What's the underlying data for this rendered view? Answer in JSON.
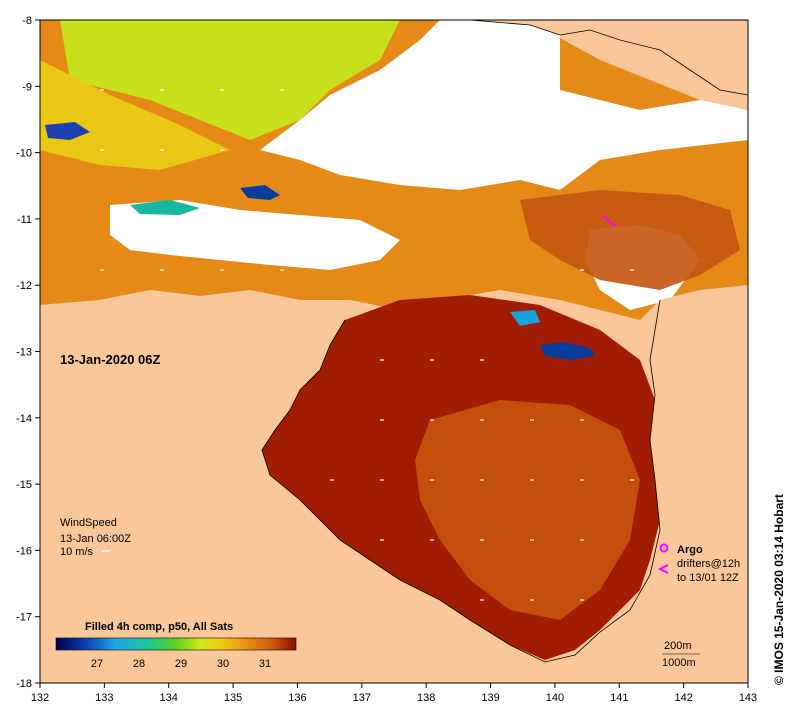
{
  "map": {
    "date_label": "13-Jan-2020 06Z",
    "credit": "© IMOS 15-Jan-2020 03:14 Hobart",
    "lon_ticks": [
      "132",
      "133",
      "134",
      "135",
      "136",
      "137",
      "138",
      "139",
      "140",
      "141",
      "142",
      "143"
    ],
    "lat_ticks": [
      "-8",
      "-9",
      "-10",
      "-11",
      "-12",
      "-13",
      "-14",
      "-15",
      "-16",
      "-17",
      "-18"
    ],
    "colors": {
      "land": "#f9c79a",
      "cloud": "#ffffff",
      "sst_hot": "#a31a00",
      "sst_warm": "#d85a0a",
      "sst_mid": "#e88c14",
      "sst_cool": "#d9e81a",
      "sst_cold": "#0a3c9c",
      "argo": "#ff00ff"
    }
  },
  "wind": {
    "title": "WindSpeed",
    "time": "13-Jan 06:00Z",
    "scale": "10 m/s"
  },
  "legend": {
    "argo": "Argo",
    "drifters": "drifters@12h",
    "drifters_to": "to 13/01 12Z",
    "contour_200": "200m",
    "contour_1000": "1000m"
  },
  "colorbar": {
    "title": "Filled 4h comp, p50, All Sats",
    "ticks": [
      "27",
      "28",
      "29",
      "30",
      "31"
    ]
  }
}
